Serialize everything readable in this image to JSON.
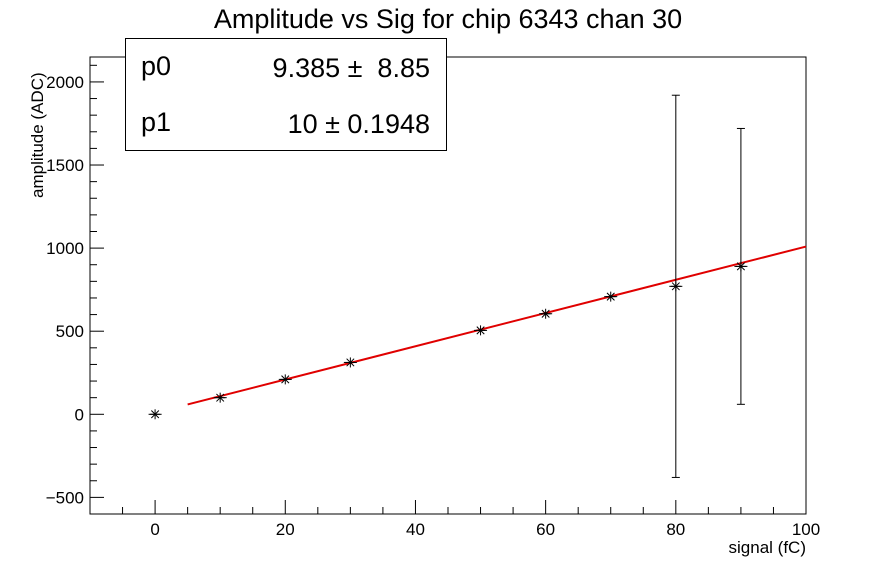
{
  "chart_data": {
    "type": "scatter",
    "title": "Amplitude vs Sig for chip 6343 chan 30",
    "xlabel": "signal (fC)",
    "ylabel": "amplitude (ADC)",
    "xlim": [
      -10,
      100
    ],
    "ylim": [
      -600,
      2150
    ],
    "x_ticks": [
      0,
      20,
      40,
      60,
      80,
      100
    ],
    "y_ticks": [
      -500,
      0,
      500,
      1000,
      1500,
      2000
    ],
    "grid": false,
    "points": [
      {
        "x": 0,
        "y": 0,
        "xerr": 1,
        "yerr": 0
      },
      {
        "x": 10,
        "y": 100,
        "xerr": 1,
        "yerr": 0
      },
      {
        "x": 20,
        "y": 210,
        "xerr": 1,
        "yerr": 0
      },
      {
        "x": 30,
        "y": 312,
        "xerr": 1,
        "yerr": 0
      },
      {
        "x": 50,
        "y": 505,
        "xerr": 1,
        "yerr": 0
      },
      {
        "x": 60,
        "y": 605,
        "xerr": 1,
        "yerr": 0
      },
      {
        "x": 70,
        "y": 708,
        "xerr": 1,
        "yerr": 0
      },
      {
        "x": 80,
        "y": 770,
        "xerr": 1,
        "yerr": 1150
      },
      {
        "x": 90,
        "y": 890,
        "xerr": 1,
        "yerr": 830
      }
    ],
    "fit": {
      "type": "linear",
      "color": "#e00000",
      "x_range": [
        5,
        100
      ],
      "p0": 9.385,
      "p1": 10
    },
    "stats_box": {
      "position": "top-left",
      "rows": [
        {
          "name": "p0",
          "value": "9.385 ±  8.85"
        },
        {
          "name": "p1",
          "value": "10 ± 0.1948"
        }
      ]
    }
  }
}
